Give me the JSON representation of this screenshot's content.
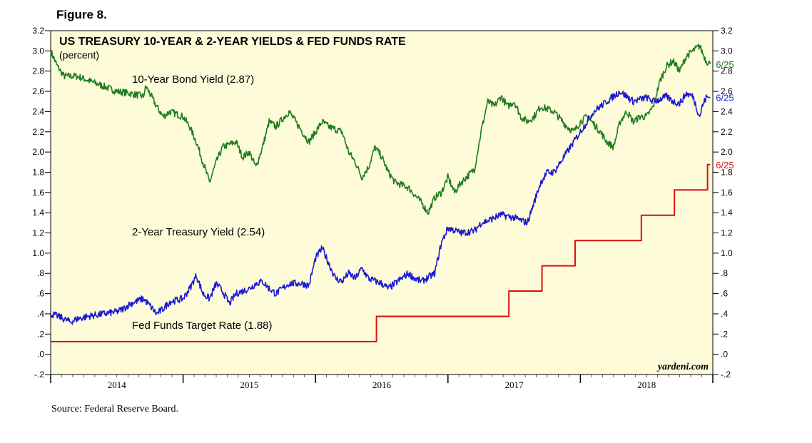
{
  "figure_label": "Figure 8.",
  "source": "Source: Federal Reserve Board.",
  "chart_data": {
    "type": "line",
    "title": "US TREASURY 10-YEAR & 2-YEAR YIELDS & FED FUNDS RATE",
    "subtitle": "(percent)",
    "watermark": "yardeni.com",
    "ylim": [
      -0.2,
      3.2
    ],
    "y_ticks": [
      {
        "v": 3.2,
        "label": "3.2"
      },
      {
        "v": 3.0,
        "label": "3.0"
      },
      {
        "v": 2.8,
        "label": "2.8"
      },
      {
        "v": 2.6,
        "label": "2.6"
      },
      {
        "v": 2.4,
        "label": "2.4"
      },
      {
        "v": 2.2,
        "label": "2.2"
      },
      {
        "v": 2.0,
        "label": "2.0"
      },
      {
        "v": 1.8,
        "label": "1.8"
      },
      {
        "v": 1.6,
        "label": "1.6"
      },
      {
        "v": 1.4,
        "label": "1.4"
      },
      {
        "v": 1.2,
        "label": "1.2"
      },
      {
        "v": 1.0,
        "label": "1.0"
      },
      {
        "v": 0.8,
        "label": ".8"
      },
      {
        "v": 0.6,
        "label": ".6"
      },
      {
        "v": 0.4,
        "label": ".4"
      },
      {
        "v": 0.2,
        "label": ".2"
      },
      {
        "v": 0.0,
        "label": ".0"
      },
      {
        "v": -0.2,
        "label": "-.2"
      }
    ],
    "xlim": [
      2013.5,
      2018.5
    ],
    "x_ticks": [
      2013.5,
      2014.5,
      2015.5,
      2016.5,
      2017.5,
      2018.5
    ],
    "x_labels": [
      {
        "x": 2014.0,
        "label": "2014"
      },
      {
        "x": 2015.0,
        "label": "2015"
      },
      {
        "x": 2016.0,
        "label": "2016"
      },
      {
        "x": 2017.0,
        "label": "2017"
      },
      {
        "x": 2018.0,
        "label": "2018"
      }
    ],
    "series": [
      {
        "name": "10-Year Bond Yield (2.87)",
        "color": "#1e7d1e",
        "end_label": "6/25",
        "x": [
          2013.5,
          2013.55,
          2013.6,
          2013.7,
          2013.8,
          2013.9,
          2014.0,
          2014.1,
          2014.2,
          2014.22,
          2014.3,
          2014.35,
          2014.4,
          2014.5,
          2014.55,
          2014.6,
          2014.65,
          2014.7,
          2014.75,
          2014.8,
          2014.9,
          2014.95,
          2015.0,
          2015.05,
          2015.1,
          2015.15,
          2015.2,
          2015.3,
          2015.4,
          2015.45,
          2015.5,
          2015.55,
          2015.6,
          2015.7,
          2015.75,
          2015.8,
          2015.85,
          2015.9,
          2015.95,
          2016.0,
          2016.05,
          2016.1,
          2016.2,
          2016.3,
          2016.35,
          2016.4,
          2016.45,
          2016.5,
          2016.55,
          2016.6,
          2016.7,
          2016.75,
          2016.8,
          2016.85,
          2016.9,
          2016.95,
          2017.0,
          2017.05,
          2017.1,
          2017.15,
          2017.2,
          2017.3,
          2017.4,
          2017.45,
          2017.5,
          2017.55,
          2017.6,
          2017.65,
          2017.7,
          2017.75,
          2017.8,
          2017.85,
          2017.9,
          2017.95,
          2018.0,
          2018.05,
          2018.1,
          2018.15,
          2018.2,
          2018.25,
          2018.3,
          2018.4,
          2018.45,
          2018.48
        ],
        "y": [
          3.0,
          2.85,
          2.75,
          2.75,
          2.7,
          2.65,
          2.6,
          2.58,
          2.55,
          2.65,
          2.45,
          2.35,
          2.4,
          2.35,
          2.25,
          2.1,
          1.9,
          1.7,
          1.9,
          2.05,
          2.1,
          1.95,
          2.0,
          1.85,
          2.05,
          2.3,
          2.25,
          2.4,
          2.2,
          2.1,
          2.2,
          2.3,
          2.25,
          2.2,
          2.0,
          1.9,
          1.75,
          1.85,
          2.05,
          1.95,
          1.8,
          1.7,
          1.65,
          1.5,
          1.4,
          1.55,
          1.6,
          1.75,
          1.6,
          1.7,
          1.83,
          2.2,
          2.5,
          2.45,
          2.55,
          2.45,
          2.5,
          2.35,
          2.3,
          2.35,
          2.45,
          2.4,
          2.25,
          2.2,
          2.3,
          2.35,
          2.28,
          2.2,
          2.1,
          2.05,
          2.3,
          2.4,
          2.3,
          2.35,
          2.35,
          2.45,
          2.7,
          2.85,
          2.9,
          2.8,
          2.95,
          3.05,
          2.9,
          2.87
        ]
      },
      {
        "name": "2-Year Treasury Yield (2.54)",
        "color": "#1a1ad4",
        "end_label": "6/25",
        "x": [
          2013.5,
          2013.55,
          2013.6,
          2013.65,
          2013.7,
          2013.8,
          2013.9,
          2014.0,
          2014.05,
          2014.1,
          2014.2,
          2014.25,
          2014.3,
          2014.35,
          2014.4,
          2014.5,
          2014.55,
          2014.6,
          2014.65,
          2014.7,
          2014.75,
          2014.8,
          2014.85,
          2014.9,
          2015.0,
          2015.05,
          2015.1,
          2015.15,
          2015.2,
          2015.3,
          2015.4,
          2015.45,
          2015.5,
          2015.55,
          2015.6,
          2015.65,
          2015.7,
          2015.75,
          2015.8,
          2015.85,
          2015.9,
          2016.0,
          2016.05,
          2016.1,
          2016.15,
          2016.2,
          2016.25,
          2016.3,
          2016.4,
          2016.45,
          2016.5,
          2016.6,
          2016.7,
          2016.75,
          2016.8,
          2016.85,
          2016.9,
          2017.0,
          2017.1,
          2017.15,
          2017.2,
          2017.25,
          2017.3,
          2017.35,
          2017.4,
          2017.5,
          2017.55,
          2017.6,
          2017.65,
          2017.7,
          2017.75,
          2017.8,
          2017.85,
          2017.9,
          2017.95,
          2018.0,
          2018.05,
          2018.1,
          2018.15,
          2018.2,
          2018.25,
          2018.3,
          2018.35,
          2018.4,
          2018.42,
          2018.45,
          2018.48
        ],
        "y": [
          0.4,
          0.38,
          0.35,
          0.32,
          0.35,
          0.38,
          0.4,
          0.42,
          0.45,
          0.5,
          0.55,
          0.48,
          0.4,
          0.45,
          0.52,
          0.55,
          0.65,
          0.78,
          0.6,
          0.55,
          0.7,
          0.62,
          0.5,
          0.6,
          0.65,
          0.7,
          0.72,
          0.65,
          0.6,
          0.7,
          0.7,
          0.68,
          0.95,
          1.05,
          0.9,
          0.75,
          0.72,
          0.8,
          0.75,
          0.85,
          0.75,
          0.7,
          0.65,
          0.7,
          0.75,
          0.8,
          0.75,
          0.72,
          0.8,
          1.1,
          1.25,
          1.2,
          1.22,
          1.3,
          1.32,
          1.35,
          1.38,
          1.35,
          1.3,
          1.5,
          1.7,
          1.8,
          1.8,
          1.9,
          2.0,
          2.2,
          2.3,
          2.4,
          2.45,
          2.5,
          2.55,
          2.6,
          2.55,
          2.5,
          2.52,
          2.54,
          2.5,
          2.52,
          2.55,
          2.5,
          2.48,
          2.58,
          2.55,
          2.35,
          2.45,
          2.54,
          2.54
        ]
      },
      {
        "name": "Fed Funds Target Rate (1.88)",
        "color": "#e01010",
        "end_label": "6/25",
        "step": true,
        "x": [
          2013.5,
          2015.96,
          2016.96,
          2017.21,
          2017.46,
          2017.96,
          2018.21,
          2018.46,
          2018.48
        ],
        "y": [
          0.125,
          0.375,
          0.625,
          0.875,
          1.125,
          1.375,
          1.625,
          1.875,
          1.875
        ]
      }
    ]
  }
}
